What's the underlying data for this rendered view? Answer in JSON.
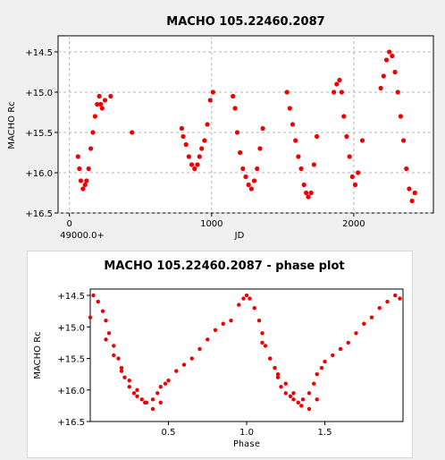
{
  "colors": {
    "points": "#ee0000",
    "grid": "#b4b4b4",
    "frame": "#000000"
  },
  "chart_data": [
    {
      "type": "scatter",
      "title": "MACHO 105.22460.2087",
      "xlabel": "JD",
      "ylabel": "MACHO Rc",
      "x_offset_label": "49000.0+",
      "xlim": [
        -80,
        2560
      ],
      "ylim": [
        16.5,
        14.3
      ],
      "y_inverted": true,
      "grid": true,
      "xticks": [
        0,
        1000,
        2000
      ],
      "xtick_labels": [
        "0",
        "1000",
        "2000"
      ],
      "yticks": [
        14.5,
        15.0,
        15.5,
        16.0,
        16.5
      ],
      "ytick_labels": [
        "+14.5",
        "+15.0",
        "+15.5",
        "+16.0",
        "+16.5"
      ],
      "series": [
        {
          "x": [
            60,
            70,
            80,
            95,
            110,
            120,
            135,
            150,
            165,
            180,
            195,
            210,
            220,
            230,
            250,
            290,
            440,
            790,
            800,
            820,
            840,
            860,
            880,
            900,
            915,
            930,
            950,
            970,
            990,
            1010,
            1150,
            1165,
            1180,
            1200,
            1220,
            1240,
            1260,
            1280,
            1300,
            1320,
            1340,
            1360,
            1530,
            1550,
            1570,
            1590,
            1610,
            1630,
            1650,
            1665,
            1680,
            1700,
            1720,
            1740,
            1860,
            1880,
            1900,
            1915,
            1930,
            1950,
            1970,
            1990,
            2010,
            2030,
            2060,
            2190,
            2210,
            2230,
            2250,
            2270,
            2290,
            2310,
            2330,
            2350,
            2370,
            2390,
            2410,
            2430
          ],
          "y": [
            15.8,
            15.95,
            16.1,
            16.2,
            16.15,
            16.1,
            15.95,
            15.7,
            15.5,
            15.3,
            15.15,
            15.05,
            15.15,
            15.2,
            15.1,
            15.05,
            15.5,
            15.45,
            15.55,
            15.65,
            15.8,
            15.9,
            15.95,
            15.9,
            15.8,
            15.7,
            15.6,
            15.4,
            15.1,
            15.0,
            15.05,
            15.2,
            15.5,
            15.75,
            15.95,
            16.05,
            16.15,
            16.2,
            16.1,
            15.95,
            15.7,
            15.45,
            15.0,
            15.2,
            15.4,
            15.6,
            15.8,
            15.95,
            16.15,
            16.25,
            16.3,
            16.25,
            15.9,
            15.55,
            15.0,
            14.9,
            14.85,
            15.0,
            15.3,
            15.55,
            15.8,
            16.05,
            16.15,
            16.0,
            15.6,
            14.95,
            14.8,
            14.6,
            14.5,
            14.55,
            14.75,
            15.0,
            15.3,
            15.6,
            15.95,
            16.2,
            16.35,
            16.25
          ]
        }
      ]
    },
    {
      "type": "scatter",
      "title": "MACHO 105.22460.2087 - phase plot",
      "xlabel": "Phase",
      "ylabel": "MACHO Rc",
      "xlim": [
        0.0,
        2.0
      ],
      "ylim": [
        16.5,
        14.4
      ],
      "y_inverted": true,
      "grid": false,
      "xticks": [
        0.5,
        1.0,
        1.5
      ],
      "xtick_labels": [
        "0.5",
        "1.0",
        "1.5"
      ],
      "yticks": [
        14.5,
        15.0,
        15.5,
        16.0,
        16.5
      ],
      "ytick_labels": [
        "+14.5",
        "+15.0",
        "+15.5",
        "+16.0",
        "+16.5"
      ],
      "series": [
        {
          "x": [
            0.0,
            0.02,
            0.05,
            0.08,
            0.1,
            0.12,
            0.15,
            0.18,
            0.2,
            0.22,
            0.25,
            0.28,
            0.3,
            0.33,
            0.36,
            0.4,
            0.43,
            0.45,
            0.48,
            0.5,
            0.55,
            0.6,
            0.65,
            0.7,
            0.75,
            0.8,
            0.85,
            0.9,
            0.95,
            0.98,
            1.0,
            1.02,
            1.05,
            1.08,
            1.1,
            1.12,
            1.15,
            1.18,
            1.2,
            1.22,
            1.25,
            1.28,
            1.3,
            1.33,
            1.36,
            1.4,
            1.43,
            1.45,
            1.48,
            1.5,
            1.55,
            1.6,
            1.65,
            1.7,
            1.75,
            1.8,
            1.85,
            1.9,
            1.95,
            1.98,
            0.1,
            0.15,
            0.2,
            0.25,
            0.3,
            0.35,
            0.4,
            0.45,
            1.1,
            1.15,
            1.2,
            1.25,
            1.3,
            1.35,
            1.4,
            1.45
          ],
          "y": [
            14.85,
            14.5,
            14.6,
            14.75,
            14.9,
            15.1,
            15.3,
            15.5,
            15.65,
            15.8,
            15.95,
            16.05,
            16.1,
            16.15,
            16.2,
            16.15,
            16.05,
            15.95,
            15.9,
            15.85,
            15.7,
            15.6,
            15.5,
            15.35,
            15.2,
            15.05,
            14.95,
            14.9,
            14.65,
            14.55,
            14.5,
            14.55,
            14.7,
            14.9,
            15.1,
            15.3,
            15.5,
            15.65,
            15.8,
            15.95,
            16.05,
            16.1,
            16.15,
            16.2,
            16.15,
            16.05,
            15.9,
            15.75,
            15.65,
            15.55,
            15.45,
            15.35,
            15.25,
            15.1,
            14.95,
            14.85,
            14.7,
            14.6,
            14.5,
            14.55,
            15.2,
            15.45,
            15.7,
            15.85,
            16.0,
            16.2,
            16.3,
            16.2,
            15.25,
            15.5,
            15.75,
            15.9,
            16.05,
            16.25,
            16.3,
            16.15
          ]
        }
      ]
    }
  ]
}
